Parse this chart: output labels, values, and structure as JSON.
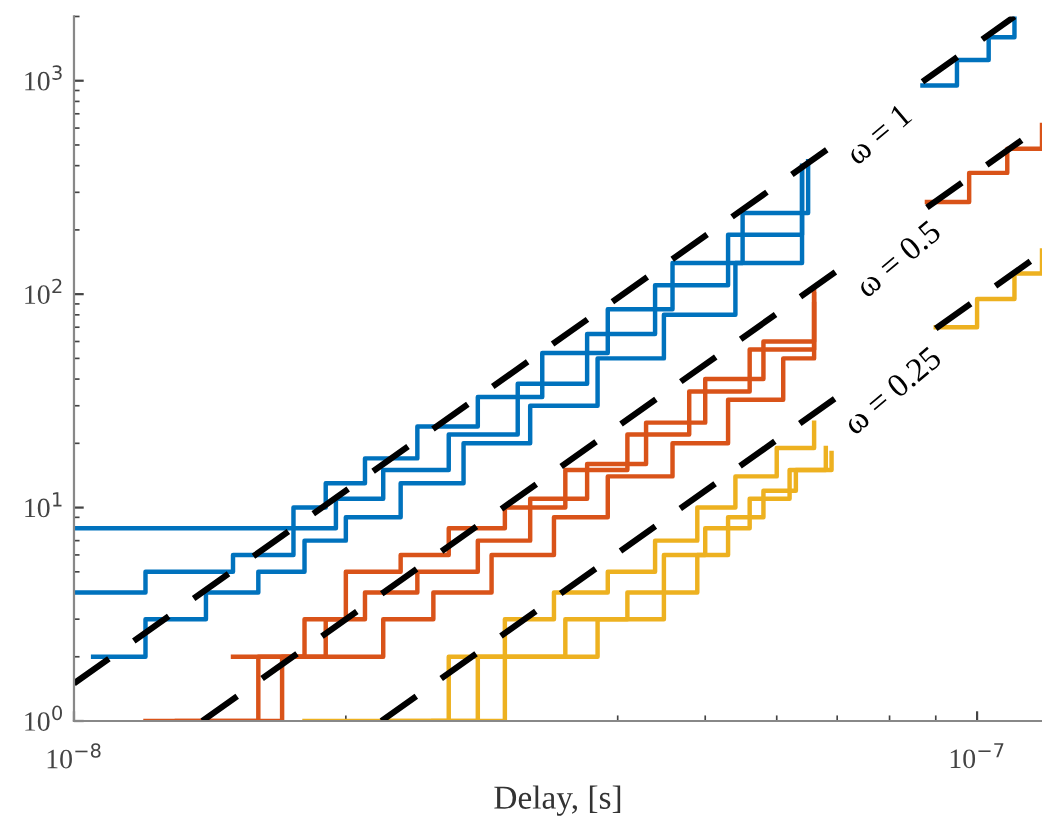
{
  "chart_data": {
    "type": "step",
    "xlabel": "Delay, [s]",
    "log": "xy",
    "grid": false,
    "xlim": [
      1e-08,
      1.18e-07
    ],
    "ylim": [
      1,
      2000
    ],
    "xticks": [
      {
        "value": 1e-08,
        "label": "10$^{−8}$"
      },
      {
        "value": 1e-07,
        "label": "10$^{−7}$"
      }
    ],
    "yticks": [
      {
        "value": 1,
        "label": "10$^{0}$"
      },
      {
        "value": 10,
        "label": "10$^{1}$"
      },
      {
        "value": 100,
        "label": "10$^{2}$"
      },
      {
        "value": 1000,
        "label": "10$^{3}$"
      }
    ],
    "annotations": [
      "ω = 1",
      "ω = 0.5",
      "ω = 0.25"
    ],
    "series": [
      {
        "color": "#0072bd",
        "x": [
          1e-08,
          1.75e-08,
          1.9e-08,
          2.1e-08,
          2.4e-08,
          2.8e-08,
          3.3e-08,
          3.9e-08,
          4.6e-08,
          5.5e-08,
          6.5e-08
        ],
        "values": [
          8,
          10,
          13,
          17,
          24,
          33,
          53,
          85,
          140,
          240,
          420
        ]
      },
      {
        "color": "#0072bd",
        "x": [
          1.05e-08,
          1.2e-08,
          1.4e-08,
          1.6e-08,
          1.8e-08,
          2e-08,
          2.3e-08,
          2.7e-08,
          3.2e-08,
          3.8e-08,
          4.5e-08,
          5.4e-08,
          6.4e-08
        ],
        "values": [
          2,
          3,
          4,
          5,
          7,
          9,
          13,
          20,
          30,
          50,
          80,
          140,
          400
        ]
      },
      {
        "color": "#0072bd",
        "x": [
          1e-08,
          1.2e-08,
          1.5e-08,
          1.75e-08,
          1.95e-08,
          2.2e-08,
          2.6e-08,
          3.1e-08,
          3.7e-08,
          4.4e-08,
          5.3e-08,
          6.4e-08
        ],
        "values": [
          4,
          5,
          6,
          8,
          11,
          15,
          22,
          38,
          65,
          110,
          190,
          380
        ]
      },
      {
        "color": "#0072bd",
        "x": [
          8.7e-08,
          9.5e-08,
          1.03e-07,
          1.1e-07
        ],
        "values": [
          950,
          1250,
          1600,
          2000
        ]
      },
      {
        "color": "#d95319",
        "x": [
          1.3e-08,
          1.6e-08,
          1.9e-08,
          2.1e-08,
          2.4e-08,
          2.8e-08,
          3.2e-08,
          3.7e-08,
          4.3e-08,
          5e-08,
          5.8e-08,
          6.6e-08
        ],
        "values": [
          1,
          2,
          3,
          4,
          5,
          7,
          11,
          16,
          25,
          40,
          60,
          100
        ]
      },
      {
        "color": "#d95319",
        "x": [
          1.5e-08,
          1.8e-08,
          2e-08,
          2.3e-08,
          2.6e-08,
          3e-08,
          3.5e-08,
          4.1e-08,
          4.8e-08,
          5.6e-08,
          6.6e-08
        ],
        "values": [
          2,
          3,
          5,
          6,
          8,
          10,
          15,
          22,
          35,
          55,
          105
        ]
      },
      {
        "color": "#d95319",
        "x": [
          1.2e-08,
          1.7e-08,
          2.2e-08,
          2.5e-08,
          2.9e-08,
          3.4e-08,
          3.9e-08,
          4.6e-08,
          5.3e-08,
          6.1e-08,
          6.6e-08
        ],
        "values": [
          1,
          2,
          3,
          4,
          6,
          9,
          14,
          20,
          32,
          50,
          90
        ]
      },
      {
        "color": "#d95319",
        "x": [
          8.8e-08,
          9.8e-08,
          1.08e-07,
          1.18e-07
        ],
        "values": [
          270,
          370,
          480,
          620
        ]
      },
      {
        "color": "#edb120",
        "x": [
          2.2e-08,
          2.6e-08,
          3e-08,
          3.4e-08,
          3.9e-08,
          4.4e-08,
          4.9e-08,
          5.4e-08,
          6e-08,
          6.6e-08
        ],
        "values": [
          1,
          2,
          3,
          4,
          5,
          7,
          10,
          14,
          19,
          25
        ]
      },
      {
        "color": "#edb120",
        "x": [
          2.5e-08,
          3e-08,
          3.5e-08,
          4.1e-08,
          4.5e-08,
          5e-08,
          5.6e-08,
          6.2e-08,
          6.8e-08
        ],
        "values": [
          1,
          2,
          3,
          4,
          6,
          8,
          11,
          15,
          19
        ]
      },
      {
        "color": "#edb120",
        "x": [
          1.8e-08,
          2.8e-08,
          3.8e-08,
          4.5e-08,
          4.9e-08,
          5.3e-08,
          5.8e-08,
          6.3e-08,
          6.9e-08
        ],
        "values": [
          1,
          2,
          3,
          4,
          6,
          9,
          12,
          15,
          18
        ]
      },
      {
        "color": "#edb120",
        "x": [
          9e-08,
          1e-07,
          1.1e-07,
          1.18e-07
        ],
        "values": [
          70,
          95,
          125,
          160
        ]
      },
      {
        "type": "line",
        "line_style": "dashed",
        "color": "#000000",
        "x": [
          1e-08,
          7e-08,
          7.2e-08,
          8.7e-08,
          1.1e-07
        ],
        "values": [
          1.5,
          514.5,
          null,
          988,
          2000
        ]
      },
      {
        "type": "line",
        "line_style": "dashed",
        "color": "#000000",
        "x": [
          1.387e-08,
          7.3e-08,
          7.5e-08,
          8.8e-08,
          1.18e-07
        ],
        "values": [
          1,
          146,
          null,
          255,
          615
        ]
      },
      {
        "type": "line",
        "line_style": "dashed",
        "color": "#000000",
        "x": [
          2.19e-08,
          7e-08,
          7.2e-08,
          9e-08,
          1.18e-07
        ],
        "values": [
          1,
          33,
          null,
          69,
          156
        ]
      }
    ]
  }
}
